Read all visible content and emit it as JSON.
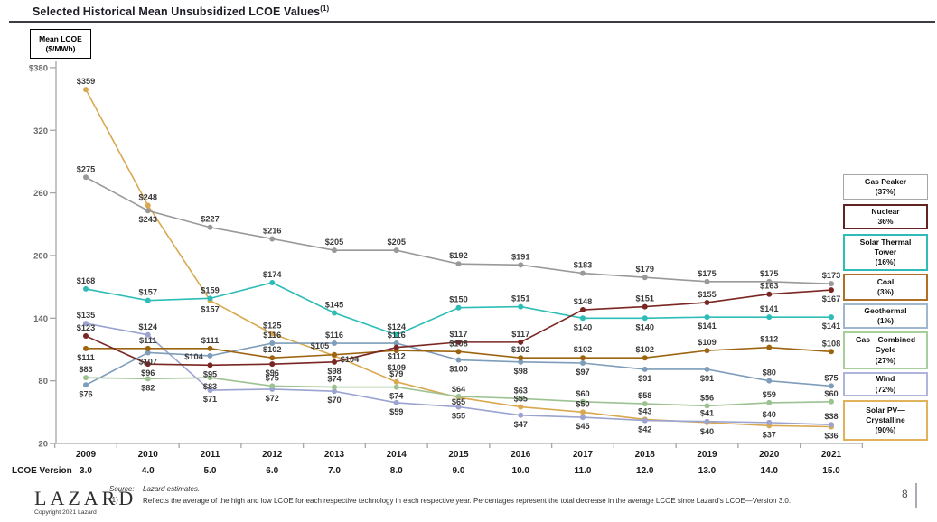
{
  "title": {
    "text": "Selected Historical Mean Unsubsidized LCOE Values",
    "sup": "(1)"
  },
  "axis_box": {
    "line1": "Mean LCOE",
    "line2": "($/MWh)"
  },
  "chart_data": {
    "type": "line",
    "title": "Selected Historical Mean Unsubsidized LCOE Values",
    "y_unit": "$/MWh",
    "ylim": [
      20,
      380
    ],
    "grid": false,
    "legend_position": "right",
    "years": [
      "2009",
      "2010",
      "2011",
      "2012",
      "2013",
      "2014",
      "2015",
      "2016",
      "2017",
      "2018",
      "2019",
      "2020",
      "2021"
    ],
    "version_row_label": "LCOE Version",
    "versions": [
      "3.0",
      "4.0",
      "5.0",
      "6.0",
      "7.0",
      "8.0",
      "9.0",
      "10.0",
      "11.0",
      "12.0",
      "13.0",
      "14.0",
      "15.0"
    ],
    "y_ticks": [
      {
        "label": "$380",
        "v": 380
      },
      {
        "label": "320",
        "v": 320
      },
      {
        "label": "260",
        "v": 260
      },
      {
        "label": "200",
        "v": 200
      },
      {
        "label": "140",
        "v": 140
      },
      {
        "label": "80",
        "v": 80
      },
      {
        "label": "20",
        "v": 20
      }
    ],
    "series": [
      {
        "name": "Gas Peaker",
        "pct": "(37%)",
        "color": "#999999",
        "values": [
          275,
          243,
          227,
          216,
          205,
          205,
          192,
          191,
          183,
          179,
          175,
          175,
          173
        ]
      },
      {
        "name": "Nuclear",
        "pct": "36%",
        "color": "#7a2623",
        "values": [
          123,
          96,
          95,
          96,
          98,
          112,
          117,
          117,
          148,
          151,
          155,
          163,
          167
        ]
      },
      {
        "name": "Solar Thermal Tower",
        "pct": "(16%)",
        "color": "#2ebdb6",
        "values": [
          168,
          157,
          159,
          174,
          145,
          124,
          150,
          151,
          140,
          140,
          141,
          141,
          141
        ]
      },
      {
        "name": "Coal",
        "pct": "(3%)",
        "color": "#9c6410",
        "values": [
          111,
          111,
          111,
          102,
          105,
          109,
          108,
          102,
          102,
          102,
          109,
          112,
          108
        ]
      },
      {
        "name": "Geothermal",
        "pct": "(1%)",
        "color": "#7e9dba",
        "values": [
          76,
          107,
          104,
          116,
          116,
          116,
          100,
          98,
          97,
          91,
          91,
          80,
          75
        ]
      },
      {
        "name": "Gas—Combined Cycle",
        "pct": "(27%)",
        "color": "#9dc292",
        "values": [
          83,
          82,
          83,
          75,
          74,
          74,
          65,
          63,
          60,
          58,
          56,
          59,
          60
        ]
      },
      {
        "name": "Wind",
        "pct": "(72%)",
        "color": "#9ba3d0",
        "values": [
          135,
          124,
          71,
          72,
          70,
          59,
          55,
          47,
          45,
          42,
          41,
          40,
          38
        ]
      },
      {
        "name": "Solar PV—Crystalline",
        "pct": "(90%)",
        "color": "#d9a850",
        "values": [
          359,
          248,
          157,
          125,
          104,
          79,
          64,
          55,
          50,
          43,
          40,
          37,
          36
        ]
      }
    ]
  },
  "legend": {
    "entries": [
      {
        "lines": [
          "Gas Peaker"
        ],
        "pct": "(37%)",
        "color": "#a6a6a6"
      },
      {
        "lines": [
          "Nuclear"
        ],
        "pct": "36%",
        "color": "#622422"
      },
      {
        "lines": [
          "Solar Thermal",
          "Tower"
        ],
        "pct": "(16%)",
        "color": "#2ebdb6"
      },
      {
        "lines": [
          "Coal"
        ],
        "pct": "(3%)",
        "color": "#b06f24"
      },
      {
        "lines": [
          "Geothermal"
        ],
        "pct": "(1%)",
        "color": "#9fb8cf"
      },
      {
        "lines": [
          "Gas—Combined",
          "Cycle"
        ],
        "pct": "(27%)",
        "color": "#a6cf99"
      },
      {
        "lines": [
          "Wind"
        ],
        "pct": "(72%)",
        "color": "#aeb4dc"
      },
      {
        "lines": [
          "Solar PV—",
          "Crystalline"
        ],
        "pct": "(90%)",
        "color": "#e0b25c"
      }
    ]
  },
  "footer": {
    "logo": "LAZARD",
    "copyright": "Copyright 2021 Lazard",
    "source_label": "Source:",
    "source_text": "Lazard estimates.",
    "footnote_marker": "(1)",
    "footnote_text": "Reflects the average of the high and low LCOE for each respective technology in each respective year. Percentages represent the total decrease in the average LCOE since Lazard's LCOE—Version 3.0.",
    "page_number": "8"
  }
}
